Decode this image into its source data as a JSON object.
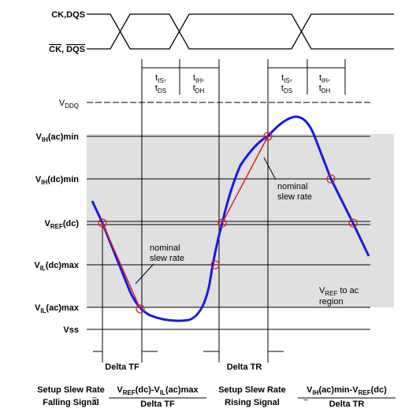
{
  "clock": {
    "true_label": "CK,DQS",
    "complement_label": [
      {
        "text": "CK",
        "overline": true
      },
      {
        "text": ", ",
        "overline": false
      },
      {
        "text": "DQS",
        "overline": true
      }
    ]
  },
  "timing": [
    {
      "label": [
        [
          "t",
          "IS",
          ","
        ],
        [
          "t",
          "DS",
          ""
        ]
      ]
    },
    {
      "label": [
        [
          "t",
          "IH",
          ","
        ],
        [
          "t",
          "DH",
          ""
        ]
      ]
    },
    {
      "label": [
        [
          "t",
          "IS",
          ","
        ],
        [
          "t",
          "DS",
          ""
        ]
      ]
    },
    {
      "label": [
        [
          "t",
          "IH",
          ","
        ],
        [
          "t",
          "DH",
          ""
        ]
      ]
    }
  ],
  "levels": [
    {
      "base": "V",
      "sub": "DDQ",
      "tail": ""
    },
    {
      "base": "V",
      "sub": "IH",
      "tail": "(ac)min"
    },
    {
      "base": "V",
      "sub": "IH",
      "tail": "(dc)min"
    },
    {
      "base": "V",
      "sub": "REF",
      "tail": "(dc)"
    },
    {
      "base": "V",
      "sub": "IL",
      "tail": "(dc)max"
    },
    {
      "base": "V",
      "sub": "IL",
      "tail": "(ac)max"
    },
    {
      "base": "Vss",
      "sub": "",
      "tail": ""
    }
  ],
  "annotations": {
    "nominal_falling": [
      "nominal",
      "slew rate"
    ],
    "nominal_rising": [
      "nominal",
      "slew rate"
    ],
    "region": [
      {
        "base": "V",
        "sub": "REF",
        "tail": " to ac"
      },
      "region"
    ]
  },
  "deltas": {
    "falling": "Delta TF",
    "rising": "Delta TR"
  },
  "formulas": [
    {
      "left": [
        "Setup Slew Rate",
        "Falling Signal"
      ],
      "eq": "=",
      "numerator": [
        [
          "V",
          "REF",
          "(dc)-V"
        ],
        [
          "",
          "IL",
          "(ac)max"
        ]
      ],
      "denominator": "Delta TF"
    },
    {
      "left": [
        "Setup Slew Rate",
        "Rising Signal"
      ],
      "eq": "=",
      "numerator": [
        [
          "V",
          "IH",
          "(ac)min-V"
        ],
        [
          "",
          "REF",
          "(dc)"
        ]
      ],
      "denominator": "Delta TR"
    }
  ]
}
